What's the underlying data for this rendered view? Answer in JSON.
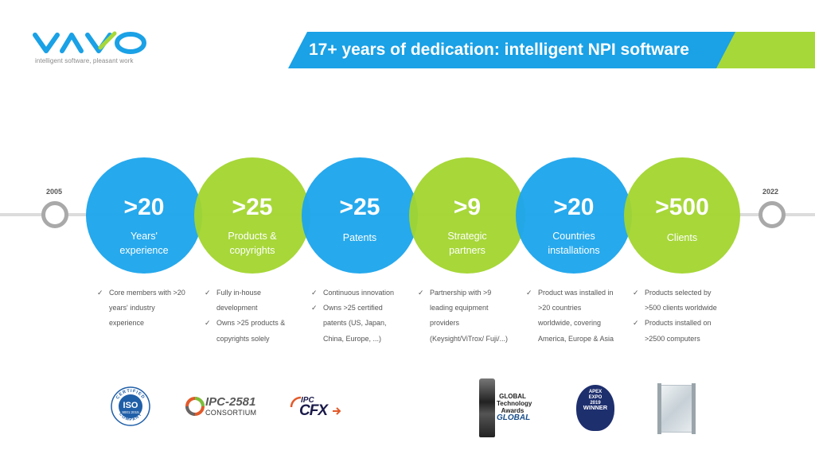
{
  "brand": {
    "logo_text": "vayo",
    "tagline": "intelligent software, pleasant work",
    "colors": {
      "blue": "#1aa1e6",
      "green": "#a6d83a",
      "gray": "#a9a9a9"
    }
  },
  "header": {
    "title": "17+ years of dedication: intelligent NPI software"
  },
  "timeline": {
    "start_year": "2005",
    "end_year": "2022"
  },
  "stats": [
    {
      "value": ">20",
      "label_line1": "Years'",
      "label_line2": "experience",
      "color": "blue"
    },
    {
      "value": ">25",
      "label_line1": "Products &",
      "label_line2": "copyrights",
      "color": "green"
    },
    {
      "value": ">25",
      "label_line1": "Patents",
      "label_line2": "",
      "color": "blue"
    },
    {
      "value": ">9",
      "label_line1": "Strategic",
      "label_line2": "partners",
      "color": "green"
    },
    {
      "value": ">20",
      "label_line1": "Countries",
      "label_line2": "installations",
      "color": "blue"
    },
    {
      "value": ">500",
      "label_line1": "Clients",
      "label_line2": "",
      "color": "green"
    }
  ],
  "details": [
    {
      "bullets": [
        {
          "lines": [
            "Core members with >20",
            "years' industry",
            "experience"
          ]
        }
      ]
    },
    {
      "bullets": [
        {
          "lines": [
            "Fully in-house",
            "development"
          ]
        },
        {
          "lines": [
            "Owns >25 products &",
            "copyrights solely"
          ]
        }
      ]
    },
    {
      "bullets": [
        {
          "lines": [
            "Continuous innovation"
          ]
        },
        {
          "lines": [
            "Owns >25 certified",
            "patents (US, Japan,",
            "China, Europe, ...)"
          ]
        }
      ]
    },
    {
      "bullets": [
        {
          "lines": [
            "Partnership with >9",
            "leading equipment",
            "providers",
            "(Keysight/ViTrox/ Fuji/...)"
          ]
        }
      ]
    },
    {
      "bullets": [
        {
          "lines": [
            "Product was installed in",
            ">20 countries",
            "worldwide, covering",
            "America, Europe & Asia"
          ]
        }
      ]
    },
    {
      "bullets": [
        {
          "lines": [
            "Products selected by",
            ">500 clients worldwide"
          ]
        },
        {
          "lines": [
            "Products installed on",
            ">2500 computers"
          ]
        }
      ]
    }
  ],
  "certifications": {
    "iso_top": "CERTIFIED",
    "iso_mid": "ISO",
    "iso_std": "9001:2015",
    "iso_bottom": "COMPANY",
    "ipc2581_title": "IPC-2581",
    "ipc2581_sub": "CONSORTIUM",
    "ipc_cfx_top": "IPC",
    "ipc_cfx_main": "CFX"
  },
  "awards": {
    "global_tech_line1": "GLOBAL",
    "global_tech_line2": "Technology",
    "global_tech_line3": "Awards",
    "global_tech_brand": "GLOBAL",
    "apex_line1": "APEX",
    "apex_line2": "EXPO",
    "apex_year": "2019",
    "winner": "WINNER"
  }
}
